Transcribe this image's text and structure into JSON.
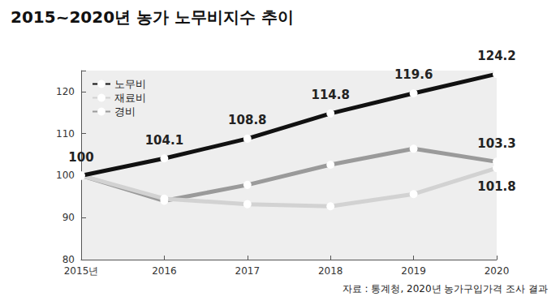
{
  "chart_data": {
    "type": "line",
    "title": "2015~2020년 농가 노무비지수 추이",
    "source": "자료 : 통계청, 2020년 농가구입가격 조사 결과",
    "categories": [
      "2015년",
      "2016",
      "2017",
      "2018",
      "2019",
      "2020"
    ],
    "series": [
      {
        "name": "노무비",
        "color": "#111111",
        "values": [
          100,
          104.1,
          108.8,
          114.8,
          119.6,
          124.2
        ],
        "data_labels": true,
        "marker": "circle"
      },
      {
        "name": "재료비",
        "color": "#d2d2d2",
        "values": [
          100,
          94.5,
          93.2,
          92.7,
          95.6,
          101.8
        ],
        "value_labels": [
          null,
          null,
          null,
          null,
          null,
          "101.8"
        ],
        "marker": "circle"
      },
      {
        "name": "경비",
        "color": "#9a9a9a",
        "values": [
          100,
          94.0,
          97.8,
          102.6,
          106.4,
          103.3
        ],
        "value_labels": [
          null,
          null,
          null,
          null,
          null,
          "103.3"
        ],
        "marker": "circle"
      }
    ],
    "ylim": [
      80,
      125
    ],
    "yticks": [
      80,
      90,
      100,
      110,
      120
    ],
    "grid": false,
    "legend": "upper left"
  }
}
